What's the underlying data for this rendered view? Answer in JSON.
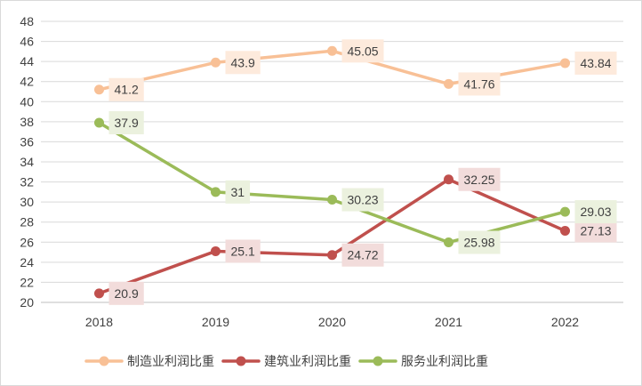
{
  "chart_data": {
    "type": "line",
    "title": "",
    "xlabel": "",
    "ylabel": "",
    "categories": [
      "2018",
      "2019",
      "2020",
      "2021",
      "2022"
    ],
    "ylim": [
      20,
      48
    ],
    "yticks": [
      20,
      22,
      24,
      26,
      28,
      30,
      32,
      34,
      36,
      38,
      40,
      42,
      44,
      46,
      48
    ],
    "grid": "horizontal",
    "legend_position": "bottom",
    "series": [
      {
        "name": "制造业利润比重",
        "color": "#f8c096",
        "label_bg": "#fdeadc",
        "values": [
          41.2,
          43.9,
          45.05,
          41.76,
          43.84
        ],
        "labels": [
          "41.2",
          "43.9",
          "45.05",
          "41.76",
          "43.84"
        ]
      },
      {
        "name": "建筑业利润比重",
        "color": "#c0504d",
        "label_bg": "#f2dcdb",
        "values": [
          20.9,
          25.1,
          24.72,
          32.25,
          27.13
        ],
        "labels": [
          "20.9",
          "25.1",
          "24.72",
          "32.25",
          "27.13"
        ]
      },
      {
        "name": "服务业利润比重",
        "color": "#9bbb59",
        "label_bg": "#ebf1de",
        "values": [
          37.9,
          31,
          30.23,
          25.98,
          29.03
        ],
        "labels": [
          "37.9",
          "31",
          "30.23",
          "25.98",
          "29.03"
        ]
      }
    ]
  }
}
